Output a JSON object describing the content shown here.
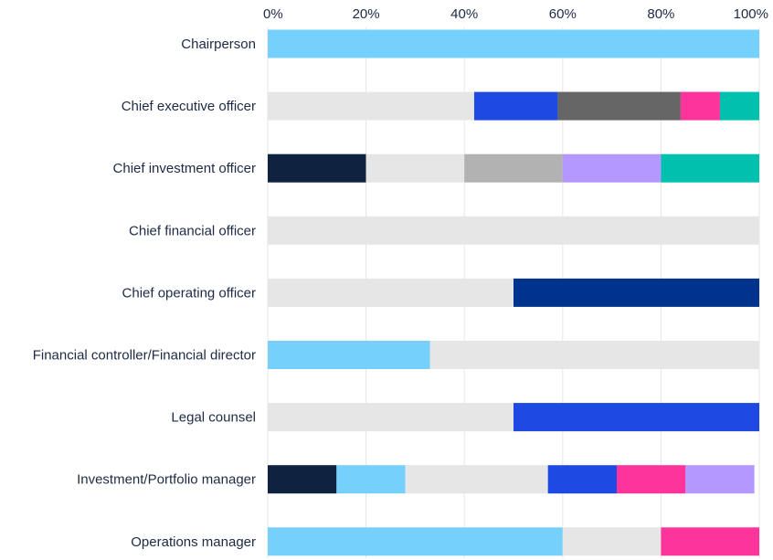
{
  "chart_data": {
    "type": "bar",
    "orientation": "horizontal",
    "stacked": true,
    "grid": true,
    "xlim": [
      0,
      100
    ],
    "x_ticks": [
      "0%",
      "20%",
      "40%",
      "60%",
      "80%",
      "100%"
    ],
    "categories": [
      "Chairperson",
      "Chief executive officer",
      "Chief investment officer",
      "Chief financial officer",
      "Chief operating officer",
      "Financial controller/Financial director",
      "Legal counsel",
      "Investment/Portfolio manager",
      "Operations manager"
    ],
    "series": [
      {
        "color": "#0f2340",
        "values": [
          0,
          0,
          20,
          0,
          0,
          0,
          0,
          14,
          0
        ]
      },
      {
        "color": "#76d0fc",
        "values": [
          100,
          0,
          0,
          0,
          0,
          33,
          0,
          14,
          60
        ]
      },
      {
        "color": "#e6e6e6",
        "values": [
          0,
          42,
          20,
          100,
          50,
          67,
          50,
          29,
          20
        ]
      },
      {
        "color": "#1e49e2",
        "values": [
          0,
          17,
          0,
          0,
          0,
          0,
          50,
          14,
          0
        ]
      },
      {
        "color": "#00338d",
        "values": [
          0,
          0,
          0,
          0,
          50,
          0,
          0,
          0,
          0
        ]
      },
      {
        "color": "#666666",
        "values": [
          0,
          25,
          0,
          0,
          0,
          0,
          0,
          0,
          0
        ]
      },
      {
        "color": "#b2b2b2",
        "values": [
          0,
          0,
          20,
          0,
          0,
          0,
          0,
          0,
          0
        ]
      },
      {
        "color": "#fd349c",
        "values": [
          0,
          8,
          0,
          0,
          0,
          0,
          0,
          14,
          20
        ]
      },
      {
        "color": "#b497ff",
        "values": [
          0,
          0,
          20,
          0,
          0,
          0,
          0,
          14,
          0
        ]
      },
      {
        "color": "#00c0ae",
        "values": [
          0,
          8,
          20,
          0,
          0,
          0,
          0,
          0,
          0
        ]
      }
    ]
  }
}
